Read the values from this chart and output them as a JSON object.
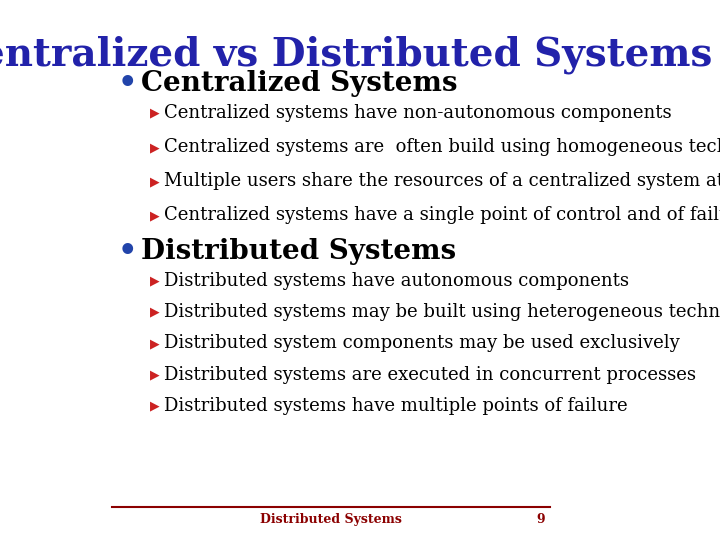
{
  "title": "Centralized vs Distributed Systems",
  "title_color": "#2222AA",
  "title_fontsize": 28,
  "background_color": "#FFFFFF",
  "bullet1_text": "Centralized Systems",
  "bullet1_color": "#000000",
  "bullet1_fontsize": 20,
  "bullet_dot_color": "#2244AA",
  "sub_bullet_arrow_color": "#CC2222",
  "sub_bullet1": [
    "Centralized systems have non-autonomous components",
    "Centralized systems are  often build using homogeneous technology",
    "Multiple users share the resources of a centralized system at all times",
    "Centralized systems have a single point of control and of failure"
  ],
  "bullet2_text": "Distributed Systems",
  "bullet2_color": "#000000",
  "bullet2_fontsize": 20,
  "sub_bullet2": [
    "Distributed systems have autonomous components",
    "Distributed systems may be built using heterogeneous technology",
    "Distributed system components may be used exclusively",
    "Distributed systems are executed in concurrent processes",
    "Distributed systems have multiple points of failure"
  ],
  "footer_text": "Distributed Systems",
  "footer_number": "9",
  "footer_color": "#8B0000",
  "footer_fontsize": 9,
  "line_color": "#8B0000",
  "sub_fontsize": 13
}
